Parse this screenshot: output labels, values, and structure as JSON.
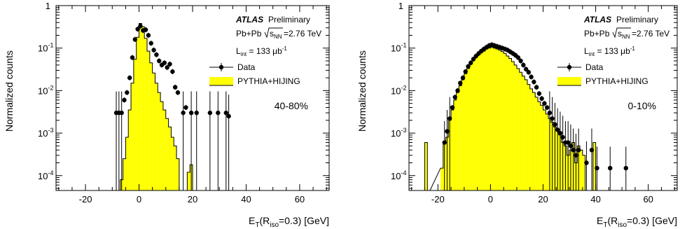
{
  "chart_data": [
    {
      "type": "histogram",
      "xlabel_main": "E",
      "xlabel_sub_T": "T",
      "xlabel_mid": "(R",
      "xlabel_sub_iso": "iso",
      "xlabel_tail": "=0.3) [GeV]",
      "ylabel": "Normalized counts",
      "xlim": [
        -31,
        71
      ],
      "ylim_log10": [
        -4.35,
        0
      ],
      "xticks": [
        "-20",
        "0",
        "20",
        "40",
        "60"
      ],
      "yticks_exp": [
        "-4",
        "-3",
        "-2",
        "-1"
      ],
      "ytick_top": "1",
      "ytick_base": "10",
      "atlas_label": "ATLAS",
      "preliminary": "Preliminary",
      "collision_prefix": "Pb+Pb",
      "sqrt_label": "s",
      "sqrt_sub": "NN",
      "energy": "=2.76 TeV",
      "lumi_prefix": "L",
      "lumi_sub": "int",
      "lumi_value": " = 133 μb",
      "lumi_exp": "-1",
      "legend_data": "Data",
      "legend_mc": "PYTHIA+HIJING",
      "centrality": "40-80%",
      "colors": {
        "fill": "#ffff00",
        "line": "#000000"
      },
      "mc_bins": [
        [
          -9,
          0
        ],
        [
          -8,
          3e-05
        ],
        [
          -7,
          8e-05
        ],
        [
          -6,
          0.00025
        ],
        [
          -5,
          0.0008
        ],
        [
          -4,
          0.0035
        ],
        [
          -3,
          0.015
        ],
        [
          -2,
          0.055
        ],
        [
          -1,
          0.18
        ],
        [
          0,
          0.38
        ],
        [
          1,
          0.32
        ],
        [
          2,
          0.17
        ],
        [
          3,
          0.085
        ],
        [
          4,
          0.045
        ],
        [
          5,
          0.026
        ],
        [
          6,
          0.015
        ],
        [
          7,
          0.009
        ],
        [
          8,
          0.0055
        ],
        [
          9,
          0.0035
        ],
        [
          10,
          0.0022
        ],
        [
          11,
          0.0014
        ],
        [
          12,
          0.0008
        ],
        [
          13,
          0.0005
        ],
        [
          14,
          0.00025
        ],
        [
          15,
          0
        ],
        [
          16,
          0
        ],
        [
          17,
          0
        ],
        [
          18,
          0.00012
        ],
        [
          19,
          0.00018
        ],
        [
          20,
          0
        ]
      ],
      "data_points": [
        [
          -8.5,
          0.003
        ],
        [
          -7.5,
          0.003
        ],
        [
          -6.5,
          0.003
        ],
        [
          -5.5,
          0.006
        ],
        [
          -4.5,
          0.009
        ],
        [
          -3.5,
          0.02
        ],
        [
          -2.5,
          0.06
        ],
        [
          -1.5,
          0.16
        ],
        [
          -0.5,
          0.28
        ],
        [
          0.5,
          0.33
        ],
        [
          1.5,
          0.26
        ],
        [
          2.5,
          0.27
        ],
        [
          3.5,
          0.2
        ],
        [
          4.5,
          0.13
        ],
        [
          5.5,
          0.09
        ],
        [
          6.5,
          0.07
        ],
        [
          7.5,
          0.05
        ],
        [
          8.5,
          0.04
        ],
        [
          9.5,
          0.045
        ],
        [
          10.5,
          0.035
        ],
        [
          11.5,
          0.042
        ],
        [
          12.5,
          0.028
        ],
        [
          13.5,
          0.012
        ],
        [
          14.5,
          0.009
        ],
        [
          16.5,
          0.003
        ],
        [
          17.5,
          0.004
        ],
        [
          19.5,
          0.003
        ],
        [
          21.5,
          0.003
        ],
        [
          26.5,
          0.003
        ],
        [
          29.5,
          0.003
        ],
        [
          32.5,
          0.003
        ],
        [
          33.5,
          0.0025
        ]
      ]
    },
    {
      "type": "histogram",
      "xlabel_main": "E",
      "xlabel_sub_T": "T",
      "xlabel_mid": "(R",
      "xlabel_sub_iso": "iso",
      "xlabel_tail": "=0.3) [GeV]",
      "ylabel": "Normalized counts",
      "xlim": [
        -31,
        71
      ],
      "ylim_log10": [
        -4.35,
        0
      ],
      "xticks": [
        "-20",
        "0",
        "20",
        "40",
        "60"
      ],
      "yticks_exp": [
        "-4",
        "-3",
        "-2",
        "-1"
      ],
      "ytick_top": "1",
      "ytick_base": "10",
      "atlas_label": "ATLAS",
      "preliminary": "Preliminary",
      "collision_prefix": "Pb+Pb",
      "sqrt_label": "s",
      "sqrt_sub": "NN",
      "energy": "=2.76 TeV",
      "lumi_prefix": "L",
      "lumi_sub": "int",
      "lumi_value": " = 133 μb",
      "lumi_exp": "-1",
      "legend_data": "Data",
      "legend_mc": "PYTHIA+HIJING",
      "centrality": "0-10%",
      "colors": {
        "fill": "#ffff00",
        "line": "#000000"
      },
      "mc_bins": [
        [
          -25,
          0.0006
        ],
        [
          -24,
          0
        ],
        [
          -19,
          0.00015
        ],
        [
          -18,
          0.0006
        ],
        [
          -17,
          0.0008
        ],
        [
          -16,
          0.002
        ],
        [
          -15,
          0.0035
        ],
        [
          -14,
          0.006
        ],
        [
          -13,
          0.009
        ],
        [
          -12,
          0.013
        ],
        [
          -11,
          0.018
        ],
        [
          -10,
          0.025
        ],
        [
          -9,
          0.033
        ],
        [
          -8,
          0.043
        ],
        [
          -7,
          0.052
        ],
        [
          -6,
          0.06
        ],
        [
          -5,
          0.07
        ],
        [
          -4,
          0.078
        ],
        [
          -3,
          0.085
        ],
        [
          -2,
          0.095
        ],
        [
          -1,
          0.1
        ],
        [
          0,
          0.105
        ],
        [
          1,
          0.1
        ],
        [
          2,
          0.095
        ],
        [
          3,
          0.09
        ],
        [
          4,
          0.083
        ],
        [
          5,
          0.075
        ],
        [
          6,
          0.065
        ],
        [
          7,
          0.057
        ],
        [
          8,
          0.048
        ],
        [
          9,
          0.04
        ],
        [
          10,
          0.033
        ],
        [
          11,
          0.027
        ],
        [
          12,
          0.022
        ],
        [
          13,
          0.018
        ],
        [
          14,
          0.014
        ],
        [
          15,
          0.011
        ],
        [
          16,
          0.009
        ],
        [
          17,
          0.007
        ],
        [
          18,
          0.0055
        ],
        [
          19,
          0.0045
        ],
        [
          20,
          0.0035
        ],
        [
          21,
          0.0028
        ],
        [
          22,
          0.0022
        ],
        [
          23,
          0.0018
        ],
        [
          24,
          0.0014
        ],
        [
          25,
          0.0011
        ],
        [
          26,
          0.0009
        ],
        [
          27,
          0.0006
        ],
        [
          28,
          0.0005
        ],
        [
          29,
          0.0003
        ],
        [
          30,
          0.0004
        ],
        [
          31,
          0.0006
        ],
        [
          32,
          0.0002
        ],
        [
          33,
          0.0005
        ],
        [
          34,
          0.0004
        ],
        [
          35,
          0.0003
        ],
        [
          36,
          0
        ],
        [
          37,
          0
        ],
        [
          38,
          0
        ],
        [
          39,
          0.0006
        ],
        [
          40,
          0
        ]
      ],
      "data_points": [
        [
          -17.5,
          0.0006
        ],
        [
          -16.5,
          0.0011
        ],
        [
          -15.5,
          0.0022
        ],
        [
          -14.5,
          0.004
        ],
        [
          -13.5,
          0.007
        ],
        [
          -12.5,
          0.01
        ],
        [
          -11.5,
          0.015
        ],
        [
          -10.5,
          0.02
        ],
        [
          -9.5,
          0.028
        ],
        [
          -8.5,
          0.037
        ],
        [
          -7.5,
          0.045
        ],
        [
          -6.5,
          0.055
        ],
        [
          -5.5,
          0.065
        ],
        [
          -4.5,
          0.075
        ],
        [
          -3.5,
          0.085
        ],
        [
          -2.5,
          0.095
        ],
        [
          -1.5,
          0.105
        ],
        [
          -0.5,
          0.115
        ],
        [
          0.5,
          0.12
        ],
        [
          1.5,
          0.115
        ],
        [
          2.5,
          0.11
        ],
        [
          3.5,
          0.105
        ],
        [
          4.5,
          0.1
        ],
        [
          5.5,
          0.095
        ],
        [
          6.5,
          0.09
        ],
        [
          7.5,
          0.082
        ],
        [
          8.5,
          0.075
        ],
        [
          9.5,
          0.068
        ],
        [
          10.5,
          0.06
        ],
        [
          11.5,
          0.05
        ],
        [
          12.5,
          0.04
        ],
        [
          13.5,
          0.032
        ],
        [
          14.5,
          0.027
        ],
        [
          15.5,
          0.021
        ],
        [
          16.5,
          0.016
        ],
        [
          17.5,
          0.012
        ],
        [
          18.5,
          0.0085
        ],
        [
          19.5,
          0.0065
        ],
        [
          20.5,
          0.005
        ],
        [
          21.5,
          0.004
        ],
        [
          22.5,
          0.003
        ],
        [
          23.5,
          0.0022
        ],
        [
          24.5,
          0.0016
        ],
        [
          25.5,
          0.0012
        ],
        [
          26.5,
          0.001
        ],
        [
          27.5,
          0.0008
        ],
        [
          28.5,
          0.0006
        ],
        [
          29.5,
          0.0006
        ],
        [
          30.5,
          0.0005
        ],
        [
          31.5,
          0.0004
        ],
        [
          32.5,
          0.0003
        ],
        [
          33.5,
          0.0004
        ],
        [
          36.5,
          0.0002
        ],
        [
          38.5,
          0.0004
        ],
        [
          40.5,
          0.00015
        ],
        [
          45.5,
          0.00015
        ],
        [
          51.5,
          0.00015
        ]
      ]
    }
  ]
}
